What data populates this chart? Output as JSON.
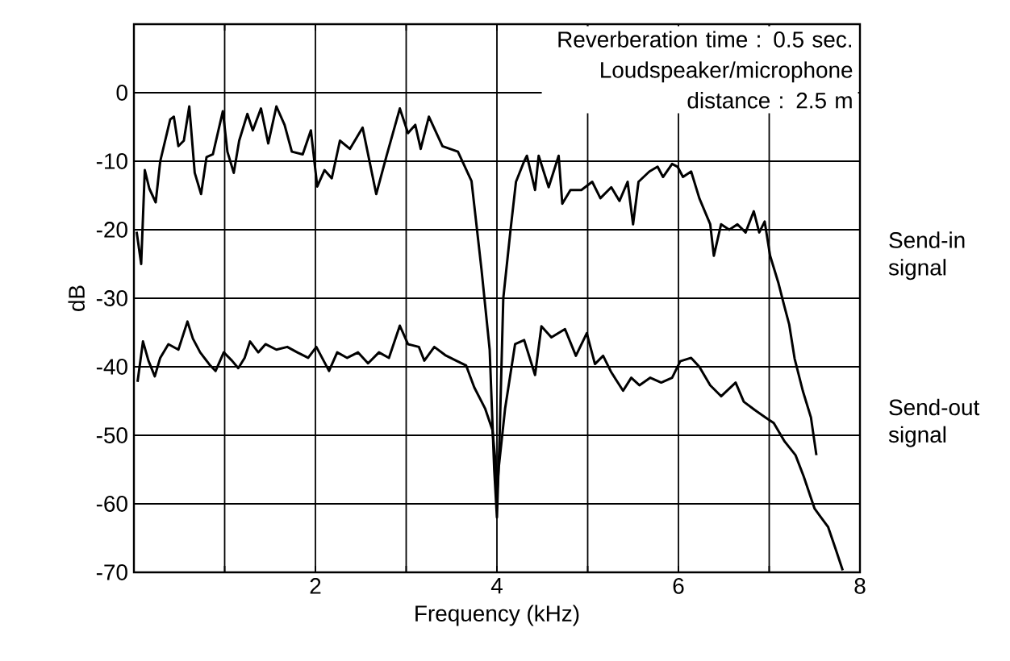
{
  "chart_data": {
    "type": "line",
    "xlabel": "Frequency (kHz)",
    "ylabel": "dB",
    "xlim": [
      0,
      8
    ],
    "ylim": [
      -70,
      10
    ],
    "xticks": [
      {
        "value": 1,
        "label": null
      },
      2,
      {
        "value": 3,
        "label": null
      },
      4,
      {
        "value": 5,
        "label": null
      },
      6,
      {
        "value": 7,
        "label": null
      },
      8
    ],
    "yticks": [
      -70,
      -60,
      -50,
      -40,
      -30,
      -20,
      -10,
      0
    ],
    "grid": true,
    "annotations": [
      "Reverberation time : 0.5 sec.",
      "Loudspeaker/microphone distance : 2.5 m"
    ],
    "series": [
      {
        "name": "Send-in signal",
        "color": "#000000",
        "x": [
          0.03,
          0.08,
          0.12,
          0.17,
          0.24,
          0.29,
          0.4,
          0.44,
          0.49,
          0.55,
          0.61,
          0.67,
          0.74,
          0.8,
          0.87,
          0.98,
          1.03,
          1.1,
          1.16,
          1.25,
          1.31,
          1.4,
          1.48,
          1.57,
          1.66,
          1.74,
          1.86,
          1.95,
          2.02,
          2.1,
          2.18,
          2.27,
          2.38,
          2.52,
          2.67,
          2.78,
          2.93,
          3.02,
          3.1,
          3.16,
          3.25,
          3.4,
          3.57,
          3.72,
          3.83,
          3.92,
          3.97,
          4.0,
          4.03,
          4.07,
          4.15,
          4.21,
          4.3,
          4.33,
          4.42,
          4.46,
          4.57,
          4.68,
          4.72,
          4.81,
          4.93,
          5.05,
          5.14,
          5.26,
          5.35,
          5.44,
          5.5,
          5.56,
          5.68,
          5.77,
          5.83,
          5.93,
          5.99,
          6.05,
          6.14,
          6.23,
          6.35,
          6.39,
          6.47,
          6.56,
          6.65,
          6.74,
          6.83,
          6.89,
          6.95,
          7.01,
          7.1,
          7.16,
          7.22,
          7.28,
          7.37,
          7.46,
          7.52
        ],
        "values": [
          -20.3,
          -25,
          -11.3,
          -14,
          -16,
          -10,
          -3.9,
          -3.5,
          -7.8,
          -7,
          -2,
          -11.7,
          -14.8,
          -9.4,
          -9,
          -2.7,
          -8.6,
          -11.7,
          -7,
          -3.1,
          -5.5,
          -2.3,
          -7.4,
          -2,
          -4.7,
          -8.6,
          -9,
          -5.5,
          -13.7,
          -11.3,
          -12.5,
          -7,
          -8.2,
          -5.1,
          -14.8,
          -9.4,
          -2.3,
          -5.9,
          -4.7,
          -8.2,
          -3.5,
          -7.8,
          -8.6,
          -12.9,
          -25.8,
          -37.5,
          -55,
          -62,
          -50,
          -30,
          -20,
          -13,
          -10,
          -9.2,
          -14.2,
          -9.2,
          -13.8,
          -9.2,
          -16.2,
          -14.2,
          -14.2,
          -13,
          -15.4,
          -13.8,
          -15.8,
          -13,
          -19.2,
          -13,
          -11.5,
          -10.8,
          -12.3,
          -10.4,
          -10.8,
          -12.3,
          -11.5,
          -15.4,
          -19.2,
          -23.8,
          -19.2,
          -20,
          -19.2,
          -20.4,
          -17.3,
          -20.4,
          -18.8,
          -23.8,
          -27.7,
          -30.8,
          -33.8,
          -38.8,
          -43.5,
          -47.4,
          -52.9
        ]
      },
      {
        "name": "Send-out signal",
        "color": "#000000",
        "x": [
          0.04,
          0.1,
          0.16,
          0.23,
          0.29,
          0.38,
          0.49,
          0.59,
          0.65,
          0.73,
          0.84,
          0.9,
          0.99,
          1.08,
          1.15,
          1.22,
          1.28,
          1.37,
          1.45,
          1.57,
          1.69,
          1.8,
          1.92,
          2.01,
          2.15,
          2.24,
          2.35,
          2.47,
          2.58,
          2.7,
          2.81,
          2.93,
          3.02,
          3.14,
          3.2,
          3.31,
          3.43,
          3.55,
          3.66,
          3.75,
          3.87,
          3.95,
          3.99,
          4.0,
          4.02,
          4.09,
          4.2,
          4.3,
          4.42,
          4.49,
          4.6,
          4.75,
          4.87,
          4.99,
          5.08,
          5.17,
          5.26,
          5.39,
          5.48,
          5.57,
          5.69,
          5.81,
          5.93,
          6.02,
          6.14,
          6.23,
          6.35,
          6.47,
          6.63,
          6.72,
          6.84,
          6.96,
          7.05,
          7.17,
          7.29,
          7.38,
          7.5,
          7.65,
          7.74,
          7.81
        ],
        "values": [
          -42.2,
          -36.3,
          -39.1,
          -41.4,
          -38.7,
          -36.7,
          -37.5,
          -33.4,
          -35.9,
          -37.9,
          -39.8,
          -40.6,
          -37.9,
          -39.1,
          -40.2,
          -38.7,
          -36.3,
          -37.9,
          -36.7,
          -37.5,
          -37.1,
          -37.9,
          -38.7,
          -37.1,
          -40.6,
          -37.9,
          -38.7,
          -37.9,
          -39.5,
          -37.9,
          -38.7,
          -34,
          -36.7,
          -37.1,
          -39.1,
          -37.1,
          -38.3,
          -39.1,
          -39.8,
          -43,
          -46.1,
          -49.2,
          -54.7,
          -58.6,
          -54.7,
          -46.1,
          -36.7,
          -36.1,
          -41.2,
          -34.1,
          -35.7,
          -34.5,
          -38.4,
          -35.1,
          -39.6,
          -38.4,
          -40.8,
          -43.5,
          -41.6,
          -42.7,
          -41.6,
          -42.3,
          -41.6,
          -39.2,
          -38.7,
          -40,
          -42.7,
          -44.3,
          -42.3,
          -45.1,
          -46.3,
          -47.4,
          -48.2,
          -50.9,
          -52.9,
          -56,
          -60.7,
          -63.4,
          -66.9,
          -69.7
        ]
      }
    ]
  }
}
